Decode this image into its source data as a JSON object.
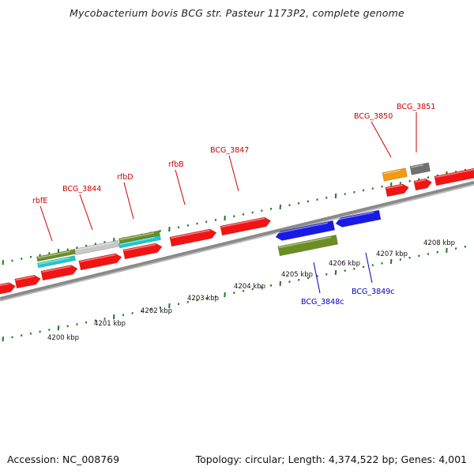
{
  "title": "Mycobacterium bovis BCG str. Pasteur 1173P2, complete genome",
  "footer": {
    "accession": "Accession: NC_008769",
    "summary": "Topology: circular; Length: 4,374,522 bp; Genes: 4,001"
  },
  "colors": {
    "red": "#f21414",
    "blue": "#1a1ae6",
    "olive": "#6b8e23",
    "cyan": "#1ec8c8",
    "gray": "#c8c8c8",
    "darkgray": "#707070",
    "orange": "#f29a10",
    "green_tick": "#1e7a1e",
    "label_red": "#cc0000",
    "label_blue": "#0000bb"
  },
  "scale_labels": [
    "4200 kbp",
    "4201 kbp",
    "4202 kbp",
    "4203 kbp",
    "4204 kbp",
    "4205 kbp",
    "4206 kbp",
    "4207 kbp",
    "4208 kbp"
  ],
  "gene_labels": [
    {
      "text": "rbfE",
      "color": "red"
    },
    {
      "text": "BCG_3844",
      "color": "red"
    },
    {
      "text": "rfbD",
      "color": "red"
    },
    {
      "text": "rfbB",
      "color": "red"
    },
    {
      "text": "BCG_3847",
      "color": "red"
    },
    {
      "text": "BCG_3850",
      "color": "red"
    },
    {
      "text": "BCG_3851",
      "color": "red"
    },
    {
      "text": "BCG_3848c",
      "color": "blue"
    },
    {
      "text": "BCG_3849c",
      "color": "blue"
    }
  ]
}
